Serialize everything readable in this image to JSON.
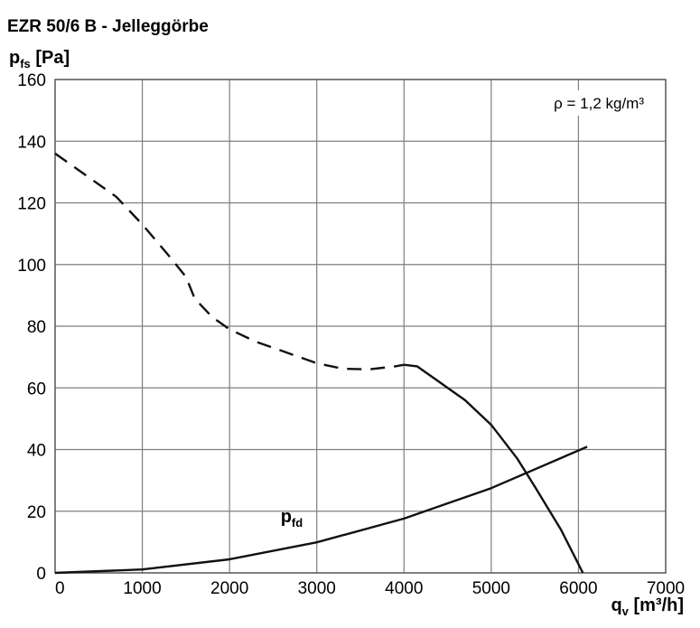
{
  "chart_data": {
    "type": "line",
    "title": "EZR 50/6 B - Jelleggörbe",
    "ylabel": {
      "main": "p",
      "sub": "fs",
      "unit": " [Pa]"
    },
    "xlabel": {
      "main": "q",
      "sub": "v",
      "unit": " [m³/h]"
    },
    "xlim": [
      0,
      7000
    ],
    "ylim": [
      0,
      160
    ],
    "x_ticks": [
      "0",
      "1000",
      "2000",
      "3000",
      "4000",
      "5000",
      "6000",
      "7000"
    ],
    "y_ticks": [
      "0",
      "20",
      "40",
      "60",
      "80",
      "100",
      "120",
      "140",
      "160"
    ],
    "grid": true,
    "annotation": "ρ = 1,2 kg/m³",
    "series": [
      {
        "style": "dashed",
        "x": [
          0,
          300,
          700,
          1000,
          1300,
          1500,
          1600,
          1800,
          2000,
          2300,
          2600,
          3000,
          3300,
          3600,
          3900,
          4000
        ],
        "y": [
          136,
          130,
          122,
          113,
          103,
          96,
          89,
          83,
          79,
          75,
          72,
          68,
          66.2,
          66,
          67,
          67.5
        ]
      },
      {
        "style": "solid",
        "x": [
          4000,
          4150,
          4400,
          4700,
          5000,
          5300,
          5500,
          5800,
          6050
        ],
        "y": [
          67.5,
          67,
          62,
          56,
          48,
          37,
          28,
          14,
          0
        ]
      },
      {
        "name": "p",
        "name_sub": "fd",
        "style": "solid",
        "x": [
          0,
          1000,
          2000,
          3000,
          4000,
          5000,
          6100
        ],
        "y": [
          0,
          1.1,
          4.4,
          9.9,
          17.6,
          27.5,
          40.9
        ]
      }
    ]
  }
}
